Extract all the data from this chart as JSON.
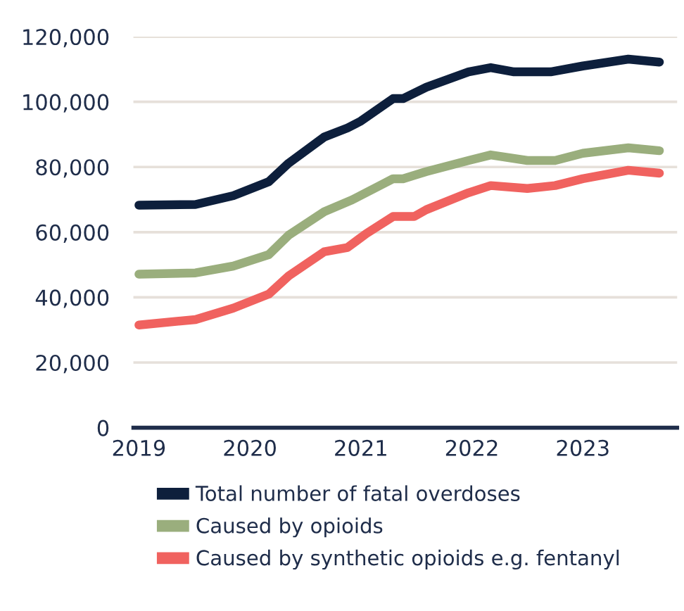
{
  "chart_data": {
    "type": "line",
    "xlim": [
      2018.95,
      2023.85
    ],
    "xticks": [
      2019,
      2020,
      2021,
      2022,
      2023
    ],
    "ylim": [
      0,
      120000
    ],
    "yticks": [
      {
        "value": 0,
        "label": "0"
      },
      {
        "value": 20000,
        "label": "20,000"
      },
      {
        "value": 40000,
        "label": "40,000"
      },
      {
        "value": 60000,
        "label": "60,000"
      },
      {
        "value": 80000,
        "label": "80,000"
      },
      {
        "value": 100000,
        "label": "100,000"
      },
      {
        "value": 120000,
        "label": "120,000"
      }
    ],
    "grid": "y",
    "legend": "bottom",
    "line_style": "solid",
    "marker": "none",
    "series": [
      {
        "name": "Total number of fatal overdoses",
        "color": "#0d1f3c",
        "x": [
          2019.0,
          2019.51,
          2019.85,
          2020.17,
          2020.35,
          2020.67,
          2020.88,
          2021.0,
          2021.29,
          2021.38,
          2021.59,
          2021.97,
          2022.17,
          2022.38,
          2022.71,
          2023.0,
          2023.41,
          2023.69
        ],
        "values": [
          68300,
          68500,
          71200,
          75500,
          81200,
          89200,
          92000,
          94100,
          101000,
          101000,
          104500,
          109200,
          110500,
          109200,
          109200,
          111000,
          113100,
          112200
        ]
      },
      {
        "name": "Caused by opioids",
        "color": "#9aae7d",
        "x": [
          2019.0,
          2019.51,
          2019.85,
          2020.17,
          2020.35,
          2020.67,
          2020.92,
          2021.29,
          2021.38,
          2021.59,
          2021.97,
          2022.17,
          2022.5,
          2022.75,
          2023.0,
          2023.41,
          2023.69
        ],
        "values": [
          47100,
          47500,
          49600,
          53100,
          59100,
          66300,
          69900,
          76400,
          76400,
          78600,
          82000,
          83700,
          82000,
          82000,
          84200,
          85900,
          85000
        ]
      },
      {
        "name": "Caused by synthetic opioids e.g. fentanyl",
        "color": "#f0625f",
        "x": [
          2019.0,
          2019.51,
          2019.85,
          2020.17,
          2020.35,
          2020.67,
          2020.88,
          2021.05,
          2021.29,
          2021.48,
          2021.59,
          2021.97,
          2022.17,
          2022.5,
          2022.75,
          2023.0,
          2023.41,
          2023.69
        ],
        "values": [
          31500,
          33200,
          36700,
          41000,
          46600,
          54000,
          55300,
          59600,
          64800,
          64800,
          66900,
          72100,
          74300,
          73400,
          74300,
          76400,
          79000,
          78100
        ]
      }
    ]
  }
}
